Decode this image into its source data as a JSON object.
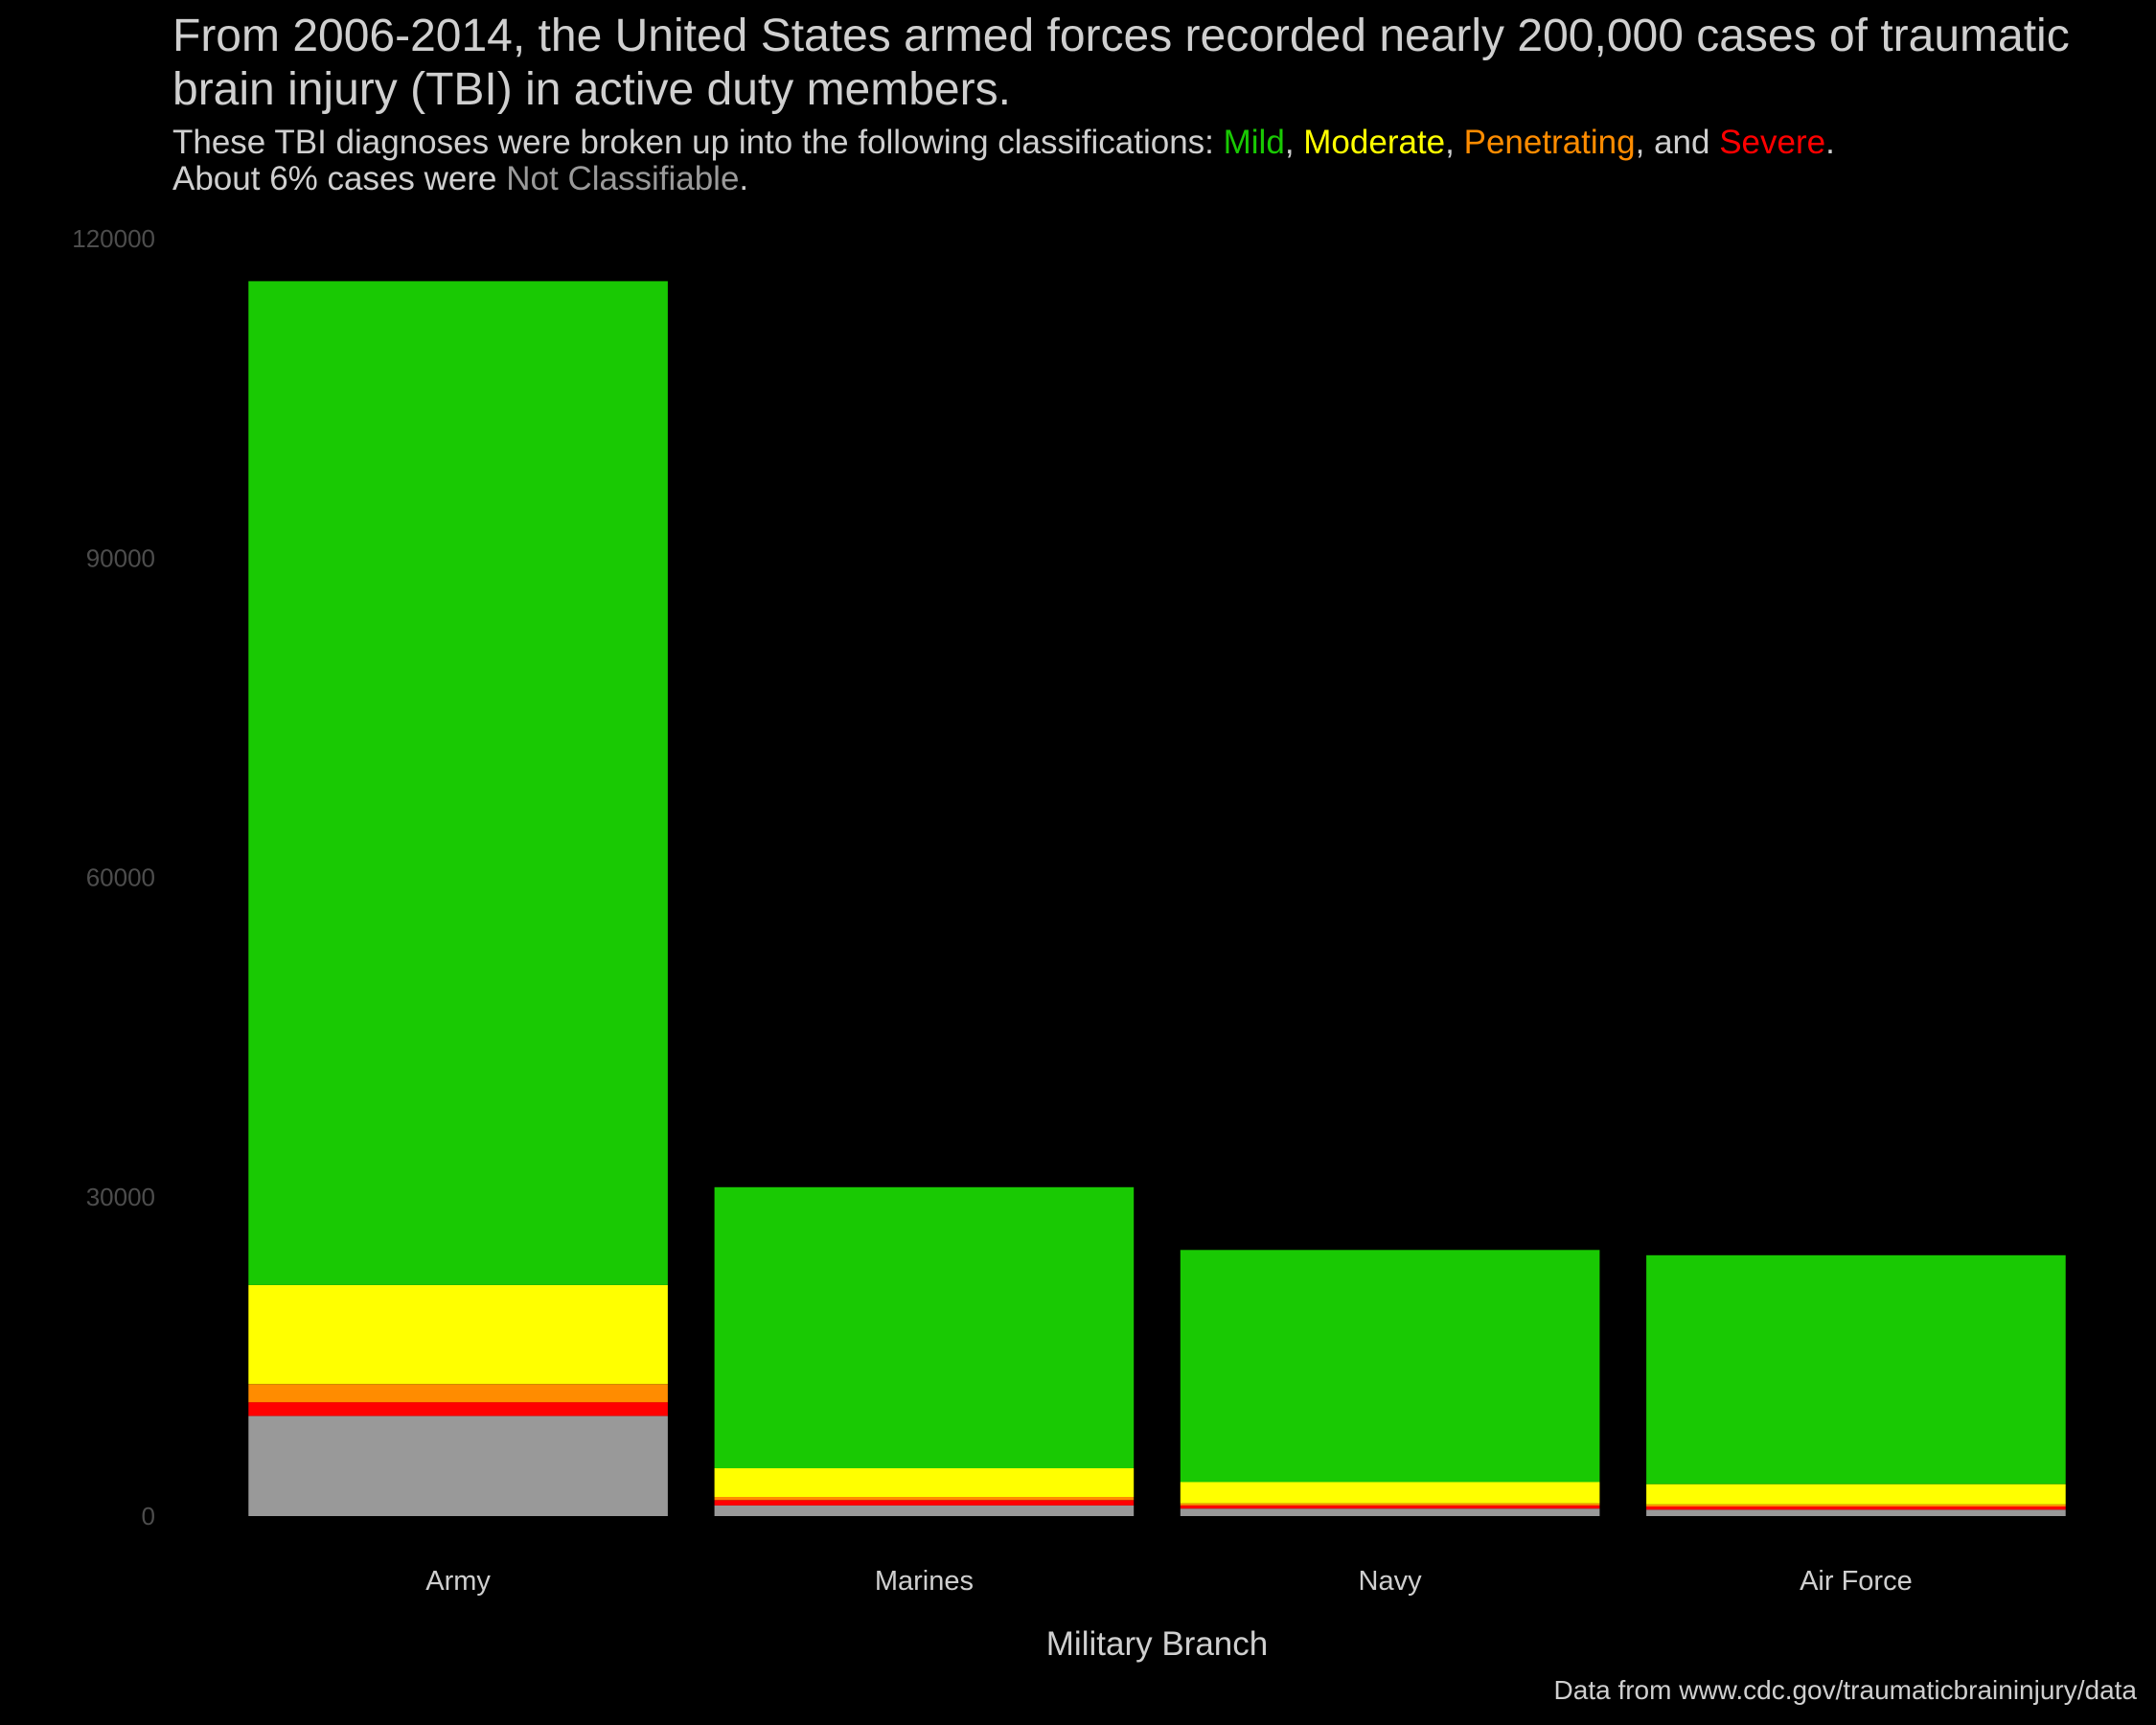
{
  "header": {
    "title": "From 2006-2014, the United States armed forces recorded nearly 200,000 cases of traumatic\nbrain injury (TBI) in active duty members.",
    "subtitle_prefix": "These TBI diagnoses were broken up into the following classifications: ",
    "subtitle_mild": "Mild",
    "subtitle_sep1": ", ",
    "subtitle_moderate": "Moderate",
    "subtitle_sep2": ", ",
    "subtitle_penetrating": "Penetrating",
    "subtitle_sep3": ", and ",
    "subtitle_severe": "Severe",
    "subtitle_end1": ".",
    "subtitle_line2_prefix": "About 6% cases were ",
    "subtitle_nc": "Not Classifiable",
    "subtitle_end2": "."
  },
  "caption": "Data from www.cdc.gov/traumaticbraininjury/data",
  "colors": {
    "background": "#000000",
    "Not Classifiable": "#999999",
    "Severe": "#ff0000",
    "Penetrating": "#ff8c00",
    "Moderate": "#ffff00",
    "Mild": "#19c903"
  },
  "chart_data": {
    "type": "bar",
    "stacked": true,
    "categories": [
      "Army",
      "Marines",
      "Navy",
      "Air Force"
    ],
    "series": [
      {
        "name": "Not Classifiable",
        "values": [
          9400,
          1000,
          700,
          600
        ]
      },
      {
        "name": "Severe",
        "values": [
          1300,
          500,
          300,
          300
        ]
      },
      {
        "name": "Penetrating",
        "values": [
          1700,
          300,
          200,
          200
        ]
      },
      {
        "name": "Moderate",
        "values": [
          9300,
          2700,
          2000,
          1900
        ]
      },
      {
        "name": "Mild",
        "values": [
          94300,
          26400,
          21800,
          21500
        ]
      }
    ],
    "xlabel": "Military Branch",
    "ylabel": "",
    "ylim": [
      0,
      120000
    ],
    "yticks": [
      "0",
      "30000",
      "60000",
      "90000",
      "120000"
    ],
    "grid": false,
    "legend": "none"
  }
}
